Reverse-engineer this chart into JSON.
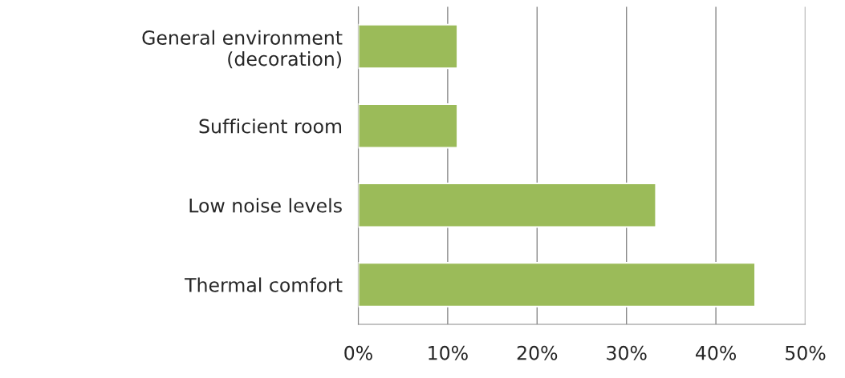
{
  "chart_data": {
    "type": "bar",
    "orientation": "horizontal",
    "categories": [
      "General environment\n(decoration)",
      "Sufficient room",
      "Low noise levels",
      "Thermal comfort"
    ],
    "values": [
      11.1,
      11.1,
      33.3,
      44.4
    ],
    "color": "#9bbb59",
    "xlim": [
      0,
      50
    ],
    "xticks": [
      {
        "value": 0,
        "label": "0%"
      },
      {
        "value": 10,
        "label": "10%"
      },
      {
        "value": 20,
        "label": "20%"
      },
      {
        "value": 30,
        "label": "30%"
      },
      {
        "value": 40,
        "label": "40%"
      },
      {
        "value": 50,
        "label": "50%"
      }
    ],
    "grid": "x"
  }
}
